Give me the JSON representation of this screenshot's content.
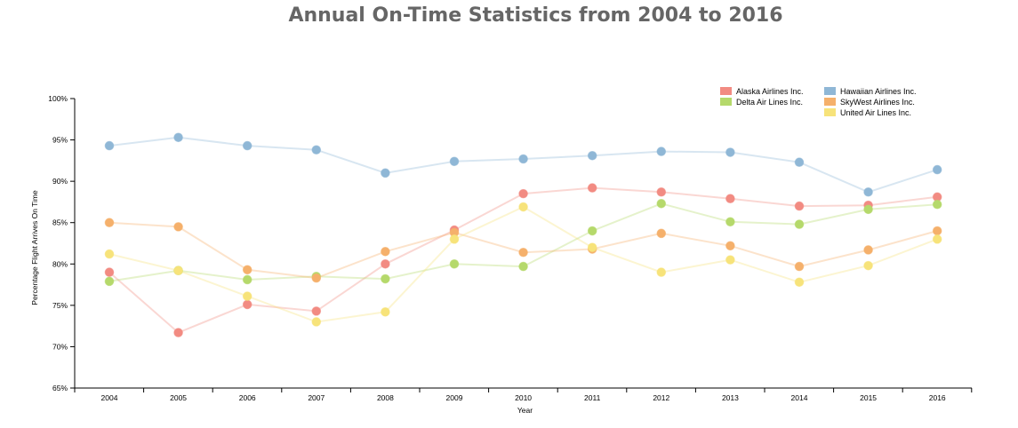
{
  "chart_data": {
    "type": "line",
    "title": "Annual On-Time Statistics from 2004 to 2016",
    "xlabel": "Year",
    "ylabel": "Percentage Flight Arrives On Time",
    "categories": [
      "2004",
      "2005",
      "2006",
      "2007",
      "2008",
      "2009",
      "2010",
      "2011",
      "2012",
      "2013",
      "2014",
      "2015",
      "2016"
    ],
    "y_ticks": [
      "65%",
      "70%",
      "75%",
      "80%",
      "85%",
      "90%",
      "95%",
      "100%"
    ],
    "ylim": [
      65,
      100
    ],
    "grid": false,
    "legend_position": "top-right",
    "series": [
      {
        "name": "Alaska Airlines Inc.",
        "color": "#f28b82",
        "values": [
          79.0,
          71.7,
          75.1,
          74.3,
          80.0,
          84.1,
          88.5,
          89.2,
          88.7,
          87.9,
          87.0,
          87.1,
          88.1
        ]
      },
      {
        "name": "Delta Air Lines Inc.",
        "color": "#b5d96b",
        "values": [
          77.9,
          79.2,
          78.1,
          78.5,
          78.2,
          80.0,
          79.7,
          84.0,
          87.3,
          85.1,
          84.8,
          86.6,
          87.2
        ]
      },
      {
        "name": "Hawaiian Airlines Inc.",
        "color": "#8fb7d6",
        "values": [
          94.3,
          95.3,
          94.3,
          93.8,
          91.0,
          92.4,
          92.7,
          93.1,
          93.6,
          93.5,
          92.3,
          88.7,
          91.4
        ]
      },
      {
        "name": "SkyWest Airlines Inc.",
        "color": "#f5b06b",
        "values": [
          85.0,
          84.5,
          79.3,
          78.3,
          81.5,
          83.8,
          81.4,
          81.8,
          83.7,
          82.2,
          79.7,
          81.7,
          84.0
        ]
      },
      {
        "name": "United Air Lines Inc.",
        "color": "#f7e37a",
        "values": [
          81.2,
          79.2,
          76.1,
          73.0,
          74.2,
          83.0,
          86.9,
          82.0,
          79.0,
          80.5,
          77.8,
          79.8,
          83.0
        ]
      }
    ]
  }
}
